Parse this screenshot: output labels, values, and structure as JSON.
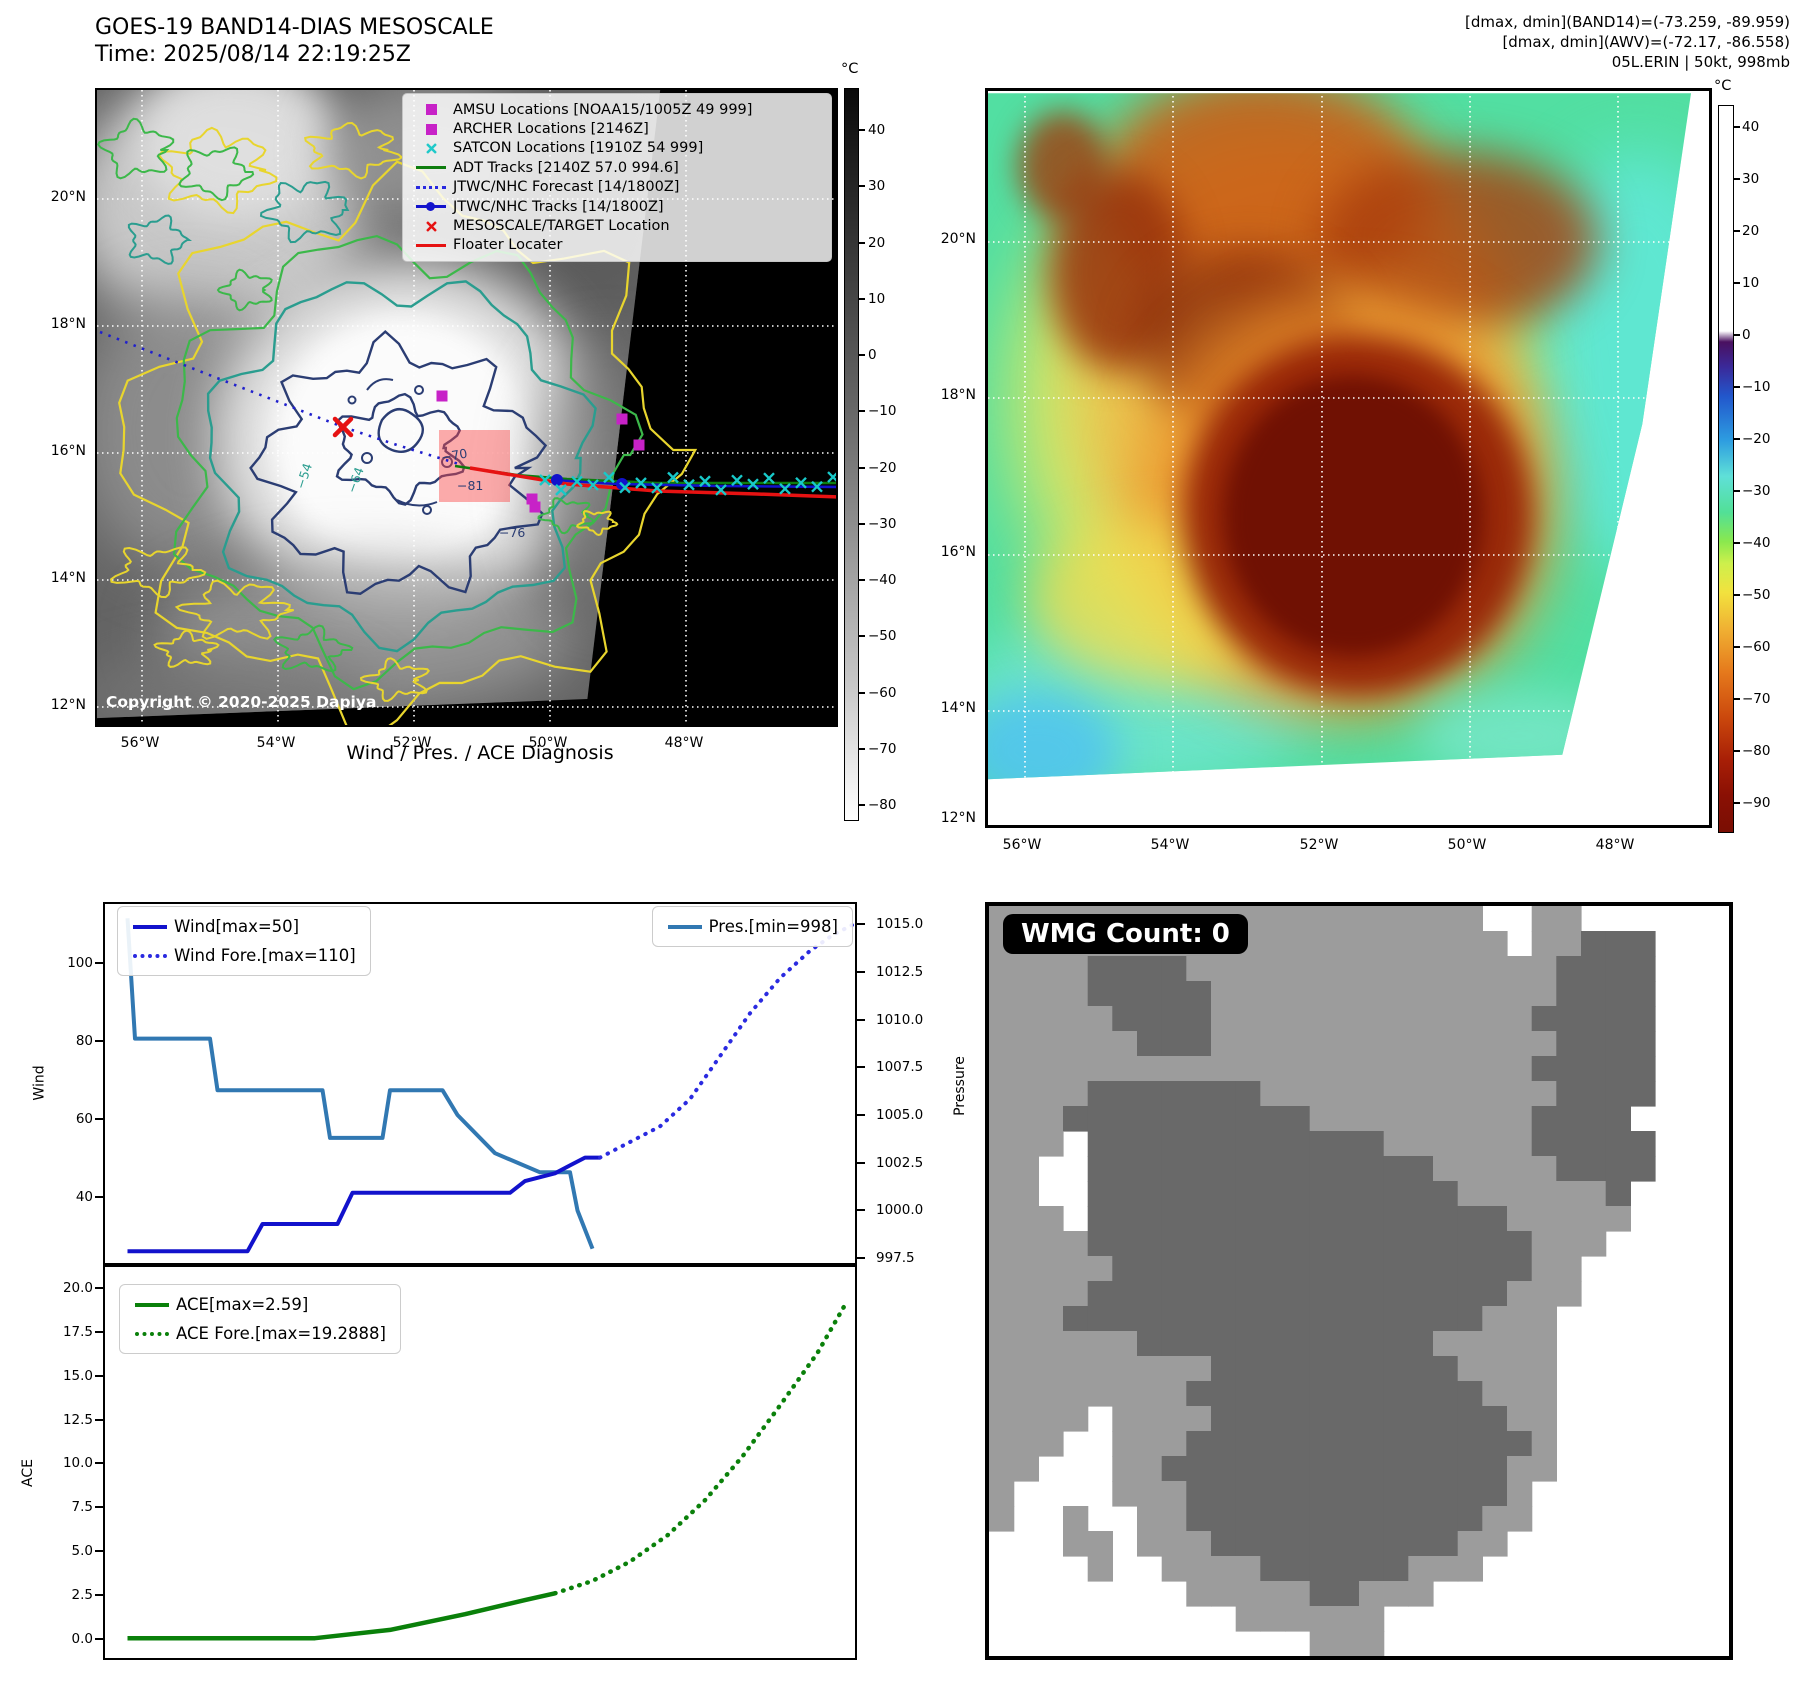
{
  "header": {
    "title": "GOES-19 BAND14-DIAS MESOSCALE",
    "time": "Time: 2025/08/14 22:19:25Z",
    "stats_band14": "[dmax, dmin](BAND14)=(-73.259, -89.959)",
    "stats_awv": "[dmax, dmin](AWV)=(-72.17, -86.558)",
    "storm_id": "05L.ERIN | 50kt, 998mb"
  },
  "left_map": {
    "copyright": "Copyright © 2020-2025 Dapiya",
    "lat_ticks": [
      "20°N",
      "18°N",
      "16°N",
      "14°N",
      "12°N"
    ],
    "lon_ticks": [
      "56°W",
      "54°W",
      "52°W",
      "50°W",
      "48°W"
    ],
    "contour_labels": [
      "−54",
      "−64",
      "−70",
      "−76",
      "−81"
    ],
    "colorbar": {
      "unit": "°C",
      "ticks": [
        "40",
        "30",
        "20",
        "10",
        "0",
        "−10",
        "−20",
        "−30",
        "−40",
        "−50",
        "−60",
        "−70",
        "−80"
      ]
    },
    "legend": {
      "items": [
        {
          "marker": "square",
          "color": "#c722c7",
          "label": "AMSU Locations [NOAA15/1005Z 49 999]"
        },
        {
          "marker": "square",
          "color": "#c722c7",
          "label": "ARCHER Locations [2146Z]"
        },
        {
          "marker": "x",
          "color": "#1fc9c9",
          "label": "SATCON Locations [1910Z 54 999]"
        },
        {
          "marker": "line",
          "color": "#0e7d0e",
          "label": "ADT Tracks [2140Z 57.0 994.6]"
        },
        {
          "marker": "dotted",
          "color": "#2a2ae0",
          "label": "JTWC/NHC Forecast [14/1800Z]"
        },
        {
          "marker": "line-dot",
          "color": "#1212cc",
          "label": "JTWC/NHC Tracks [14/1800Z]"
        },
        {
          "marker": "x",
          "color": "#e61212",
          "label": "MESOSCALE/TARGET Location"
        },
        {
          "marker": "line",
          "color": "#e61212",
          "label": "Floater Locater"
        }
      ]
    }
  },
  "right_map": {
    "lat_ticks": [
      "20°N",
      "18°N",
      "16°N",
      "14°N",
      "12°N"
    ],
    "lon_ticks": [
      "56°W",
      "54°W",
      "52°W",
      "50°W",
      "48°W"
    ],
    "colorbar": {
      "unit": "°C",
      "ticks": [
        "40",
        "30",
        "20",
        "10",
        "0",
        "−10",
        "−20",
        "−30",
        "−40",
        "−50",
        "−60",
        "−70",
        "−80",
        "−90"
      ]
    }
  },
  "charts": {
    "section_title": "Wind / Pres. / ACE Diagnosis"
  },
  "wmg": {
    "count_label": "WMG Count: 0",
    "grid": [
      "gggggggggggggggggggg..gg......",
      "ggggggggggggggggggggg.ggddd...",
      "ggggddddgggggggggggggggdddd...",
      "ggggdddddggggggggggggggdddd...",
      "gggggddddgggggggggggggddddd...",
      "ggggggdddggggggggggggggdddd...",
      "ggggggggggggggggggggggddddd...",
      "ggggdddddddggggggggggggdddd...",
      "gggddddddddddgggggggggdddd....",
      "ggg.ddddddddddddggggggddddd...",
      "gg..ddddddddddddddgggggdddd...",
      "gg..dddddddddddddddggggggd....",
      "ggg.dddddddddddddddddggggg....",
      "ggggddddddddddddddddddggg.....",
      "gggggdddddddddddddddddgg......",
      "ggggdddddddddddddddddggg......",
      "gggdddddddddddddddddggg.......",
      "ggggggddddddddddddggggg.......",
      "gggggggggddddddddddgggg.......",
      "ggggggggddddddddddddggg.......",
      "gggg.ggggddddddddddddgg.......",
      "ggg..gggddddddddddddddg.......",
      "gg...ggddddddddddddddgg.......",
      "g....gggdddddddddddddg........",
      "g..g..ggddddddddddddgg........",
      "...gg.gggddddddddddgg.........",
      "....g..ggggddddddggg..........",
      "........gggggddggg............",
      "..........gggggg..............",
      ".............ggg.............."
    ]
  },
  "chart_data": [
    {
      "type": "line",
      "panel": "wind_pressure",
      "title": "Wind / Pres. / ACE Diagnosis",
      "x": {
        "range": [
          0,
          100
        ],
        "ticks": []
      },
      "y_left": {
        "label": "Wind",
        "range": [
          23,
          115
        ],
        "ticks": [
          "100",
          "80",
          "60",
          "40"
        ],
        "tick_values": [
          100,
          80,
          60,
          40
        ]
      },
      "y_right": {
        "label": "Pressure",
        "range": [
          997.25,
          1016.05
        ],
        "ticks": [
          "1015.0",
          "1012.5",
          "1010.0",
          "1007.5",
          "1005.0",
          "1002.5",
          "1000.0",
          "997.5"
        ],
        "tick_values": [
          1015,
          1012.5,
          1010,
          1007.5,
          1005,
          1002.5,
          1000,
          997.5
        ]
      },
      "series": [
        {
          "name": "Wind[max=50]",
          "axis": "left",
          "style": "solid",
          "color": "#1212cc",
          "width": 4,
          "points": [
            [
              3,
              26
            ],
            [
              19,
              26
            ],
            [
              21,
              33
            ],
            [
              31,
              33
            ],
            [
              33,
              41
            ],
            [
              54,
              41
            ],
            [
              56,
              44
            ],
            [
              58,
              45
            ],
            [
              60,
              46
            ],
            [
              62,
              48
            ],
            [
              64,
              50
            ],
            [
              66,
              50
            ]
          ]
        },
        {
          "name": "Wind Fore.[max=110]",
          "axis": "left",
          "style": "dotted",
          "color": "#2a2ae0",
          "width": 4,
          "points": [
            [
              66,
              50
            ],
            [
              70,
              54
            ],
            [
              74,
              58
            ],
            [
              78,
              65
            ],
            [
              82,
              76
            ],
            [
              86,
              87
            ],
            [
              90,
              96
            ],
            [
              94,
              103
            ],
            [
              97,
              107
            ],
            [
              100,
              110
            ]
          ]
        },
        {
          "name": "Pres.[min=998]",
          "axis": "right",
          "style": "solid",
          "color": "#3178b2",
          "width": 4,
          "points": [
            [
              3,
              1015.3
            ],
            [
              4,
              1009
            ],
            [
              14,
              1009
            ],
            [
              15,
              1006.3
            ],
            [
              29,
              1006.3
            ],
            [
              30,
              1003.8
            ],
            [
              37,
              1003.8
            ],
            [
              38,
              1006.3
            ],
            [
              45,
              1006.3
            ],
            [
              47,
              1005
            ],
            [
              52,
              1003
            ],
            [
              58,
              1002
            ],
            [
              62,
              1002
            ],
            [
              63,
              1000
            ],
            [
              65,
              998
            ]
          ]
        }
      ]
    },
    {
      "type": "line",
      "panel": "ace",
      "x": {
        "range": [
          0,
          100
        ],
        "ticks": []
      },
      "y_left": {
        "label": "ACE",
        "range": [
          -1.1,
          21.2
        ],
        "ticks": [
          "20.0",
          "17.5",
          "15.0",
          "12.5",
          "10.0",
          "7.5",
          "5.0",
          "2.5",
          "0.0"
        ],
        "tick_values": [
          20,
          17.5,
          15,
          12.5,
          10,
          7.5,
          5,
          2.5,
          0
        ]
      },
      "series": [
        {
          "name": "ACE[max=2.59]",
          "axis": "left",
          "style": "solid",
          "color": "#0a800a",
          "width": 4.5,
          "points": [
            [
              3,
              0.03
            ],
            [
              28,
              0.03
            ],
            [
              38,
              0.5
            ],
            [
              48,
              1.4
            ],
            [
              56,
              2.2
            ],
            [
              60,
              2.59
            ]
          ]
        },
        {
          "name": "ACE Fore.[max=19.2888]",
          "axis": "left",
          "style": "dotted",
          "color": "#0a800a",
          "width": 4.5,
          "points": [
            [
              60,
              2.59
            ],
            [
              65,
              3.3
            ],
            [
              70,
              4.4
            ],
            [
              75,
              5.9
            ],
            [
              80,
              7.9
            ],
            [
              85,
              10.4
            ],
            [
              90,
              13.3
            ],
            [
              95,
              16.3
            ],
            [
              99,
              19.29
            ]
          ]
        }
      ]
    }
  ]
}
